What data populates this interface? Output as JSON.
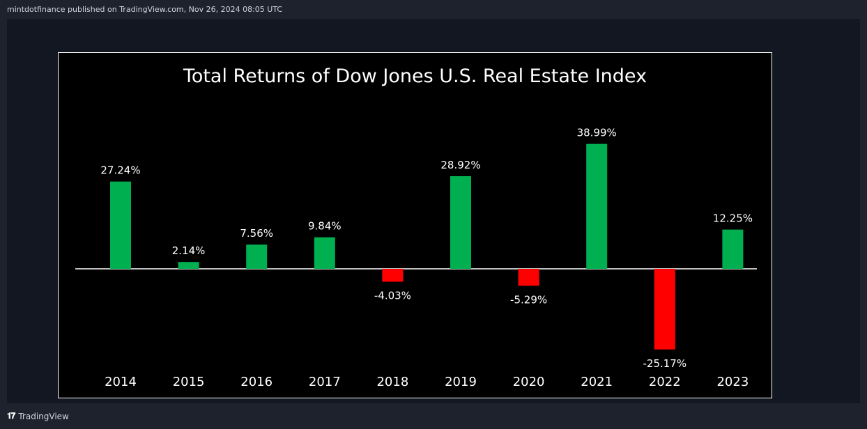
{
  "header": {
    "published_text": "mintdotfinance published on TradingView.com, Nov 26, 2024 08:05 UTC"
  },
  "footer": {
    "brand_label": "TradingView",
    "logo_icon": "tradingview-logo-icon"
  },
  "colors": {
    "positive": "#00b050",
    "negative": "#ff0000",
    "background": "#000000",
    "text": "#ffffff"
  },
  "chart_data": {
    "type": "bar",
    "title": "Total Returns of Dow Jones U.S. Real Estate Index",
    "xlabel": "",
    "ylabel": "",
    "categories": [
      "2014",
      "2015",
      "2016",
      "2017",
      "2018",
      "2019",
      "2020",
      "2021",
      "2022",
      "2023"
    ],
    "values": [
      27.24,
      2.14,
      7.56,
      9.84,
      -4.03,
      28.92,
      -5.29,
      38.99,
      -25.17,
      12.25
    ],
    "labels": [
      "27.24%",
      "2.14%",
      "7.56%",
      "9.84%",
      "-4.03%",
      "28.92%",
      "-5.29%",
      "38.99%",
      "-25.17%",
      "12.25%"
    ],
    "ylim": [
      -30,
      45
    ],
    "grid": false,
    "legend": "none"
  }
}
